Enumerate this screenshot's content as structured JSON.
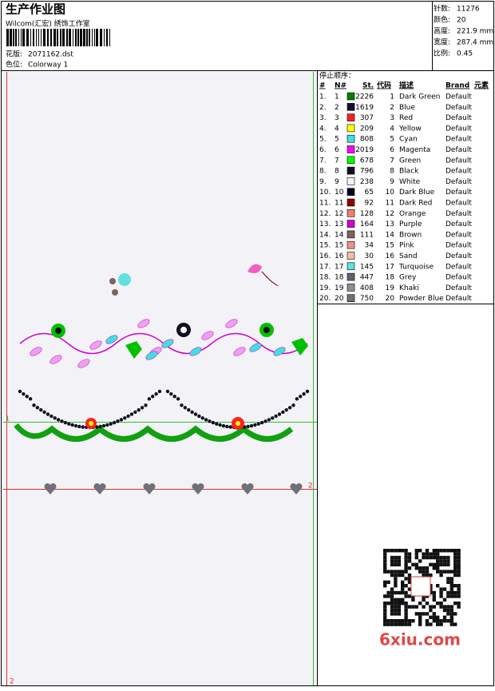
{
  "header": {
    "title": "生产作业图",
    "company": "Wilcom(汇宏) 绣饰工作室",
    "design_label": "花版:",
    "design": "2071162.dst",
    "colorway_label": "色位:",
    "colorway": "Colorway 1"
  },
  "info": [
    {
      "label": "针数:",
      "value": "11276"
    },
    {
      "label": "颜色:",
      "value": "20"
    },
    {
      "label": "高度:",
      "value": "221.9 mm"
    },
    {
      "label": "宽度:",
      "value": "287.4 mm"
    },
    {
      "label": "比例:",
      "value": "0.45"
    }
  ],
  "table": {
    "caption": "停止顺序：",
    "columns": [
      "#",
      "N#",
      "St.",
      "代码",
      "描述",
      "Brand",
      "元素"
    ],
    "rows": [
      {
        "stop": "1.",
        "needle": "1",
        "color": "#008000",
        "stitches": "2226",
        "code": "1",
        "description": "Dark Green",
        "brand": "Default"
      },
      {
        "stop": "2.",
        "needle": "2",
        "color": "#101030",
        "stitches": "1619",
        "code": "2",
        "description": "Blue",
        "brand": "Default"
      },
      {
        "stop": "3.",
        "needle": "3",
        "color": "#ff2020",
        "stitches": "307",
        "code": "3",
        "description": "Red",
        "brand": "Default"
      },
      {
        "stop": "4.",
        "needle": "4",
        "color": "#ffff00",
        "stitches": "209",
        "code": "4",
        "description": "Yellow",
        "brand": "Default"
      },
      {
        "stop": "5.",
        "needle": "5",
        "color": "#40e0e0",
        "stitches": "808",
        "code": "5",
        "description": "Cyan",
        "brand": "Default"
      },
      {
        "stop": "6.",
        "needle": "6",
        "color": "#ff00ff",
        "stitches": "2019",
        "code": "6",
        "description": "Magenta",
        "brand": "Default"
      },
      {
        "stop": "7.",
        "needle": "7",
        "color": "#00ff00",
        "stitches": "678",
        "code": "7",
        "description": "Green",
        "brand": "Default"
      },
      {
        "stop": "8.",
        "needle": "8",
        "color": "#101020",
        "stitches": "796",
        "code": "8",
        "description": "Black",
        "brand": "Default"
      },
      {
        "stop": "9.",
        "needle": "9",
        "color": "#f4f4f4",
        "stitches": "238",
        "code": "9",
        "description": "White",
        "brand": "Default"
      },
      {
        "stop": "10.",
        "needle": "10",
        "color": "#000020",
        "stitches": "65",
        "code": "10",
        "description": "Dark Blue",
        "brand": "Default"
      },
      {
        "stop": "11.",
        "needle": "11",
        "color": "#900000",
        "stitches": "92",
        "code": "11",
        "description": "Dark Red",
        "brand": "Default"
      },
      {
        "stop": "12.",
        "needle": "12",
        "color": "#f08070",
        "stitches": "128",
        "code": "12",
        "description": "Orange",
        "brand": "Default"
      },
      {
        "stop": "13.",
        "needle": "13",
        "color": "#d000d0",
        "stitches": "164",
        "code": "13",
        "description": "Purple",
        "brand": "Default"
      },
      {
        "stop": "14.",
        "needle": "14",
        "color": "#806060",
        "stitches": "111",
        "code": "14",
        "description": "Brown",
        "brand": "Default"
      },
      {
        "stop": "15.",
        "needle": "15",
        "color": "#f09090",
        "stitches": "34",
        "code": "15",
        "description": "Pink",
        "brand": "Default"
      },
      {
        "stop": "16.",
        "needle": "16",
        "color": "#f0c0a0",
        "stitches": "30",
        "code": "16",
        "description": "Sand",
        "brand": "Default"
      },
      {
        "stop": "17.",
        "needle": "17",
        "color": "#60e0e0",
        "stitches": "145",
        "code": "17",
        "description": "Turquoise",
        "brand": "Default"
      },
      {
        "stop": "18.",
        "needle": "18",
        "color": "#606070",
        "stitches": "447",
        "code": "18",
        "description": "Grey",
        "brand": "Default"
      },
      {
        "stop": "19.",
        "needle": "19",
        "color": "#909090",
        "stitches": "408",
        "code": "19",
        "description": "Khaki",
        "brand": "Default"
      },
      {
        "stop": "20.",
        "needle": "20",
        "color": "#707070",
        "stitches": "750",
        "code": "20",
        "description": "Powder Blue",
        "brand": "Default"
      }
    ]
  },
  "markers": [
    "1",
    "2",
    "2"
  ],
  "watermark": "6xiu.com"
}
